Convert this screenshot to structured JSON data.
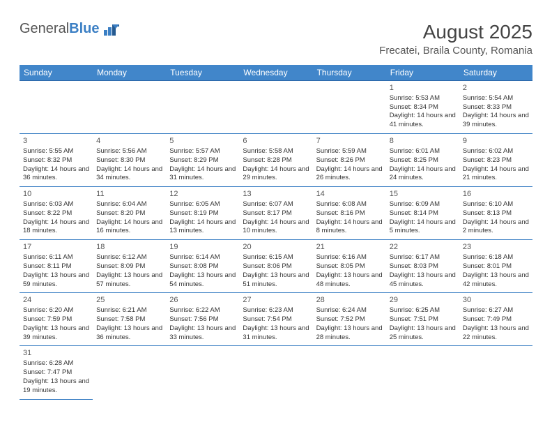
{
  "logo": {
    "textA": "General",
    "textB": "Blue"
  },
  "title": "August 2025",
  "location": "Frecatei, Braila County, Romania",
  "colors": {
    "headerBg": "#4186ca",
    "headerFg": "#ffffff",
    "border": "#3b7fc4",
    "logoBlue": "#3b7fc4",
    "text": "#333"
  },
  "dayNames": [
    "Sunday",
    "Monday",
    "Tuesday",
    "Wednesday",
    "Thursday",
    "Friday",
    "Saturday"
  ],
  "startOffset": 5,
  "days": [
    {
      "n": 1,
      "sr": "5:53 AM",
      "ss": "8:34 PM",
      "dl": "14 hours and 41 minutes."
    },
    {
      "n": 2,
      "sr": "5:54 AM",
      "ss": "8:33 PM",
      "dl": "14 hours and 39 minutes."
    },
    {
      "n": 3,
      "sr": "5:55 AM",
      "ss": "8:32 PM",
      "dl": "14 hours and 36 minutes."
    },
    {
      "n": 4,
      "sr": "5:56 AM",
      "ss": "8:30 PM",
      "dl": "14 hours and 34 minutes."
    },
    {
      "n": 5,
      "sr": "5:57 AM",
      "ss": "8:29 PM",
      "dl": "14 hours and 31 minutes."
    },
    {
      "n": 6,
      "sr": "5:58 AM",
      "ss": "8:28 PM",
      "dl": "14 hours and 29 minutes."
    },
    {
      "n": 7,
      "sr": "5:59 AM",
      "ss": "8:26 PM",
      "dl": "14 hours and 26 minutes."
    },
    {
      "n": 8,
      "sr": "6:01 AM",
      "ss": "8:25 PM",
      "dl": "14 hours and 24 minutes."
    },
    {
      "n": 9,
      "sr": "6:02 AM",
      "ss": "8:23 PM",
      "dl": "14 hours and 21 minutes."
    },
    {
      "n": 10,
      "sr": "6:03 AM",
      "ss": "8:22 PM",
      "dl": "14 hours and 18 minutes."
    },
    {
      "n": 11,
      "sr": "6:04 AM",
      "ss": "8:20 PM",
      "dl": "14 hours and 16 minutes."
    },
    {
      "n": 12,
      "sr": "6:05 AM",
      "ss": "8:19 PM",
      "dl": "14 hours and 13 minutes."
    },
    {
      "n": 13,
      "sr": "6:07 AM",
      "ss": "8:17 PM",
      "dl": "14 hours and 10 minutes."
    },
    {
      "n": 14,
      "sr": "6:08 AM",
      "ss": "8:16 PM",
      "dl": "14 hours and 8 minutes."
    },
    {
      "n": 15,
      "sr": "6:09 AM",
      "ss": "8:14 PM",
      "dl": "14 hours and 5 minutes."
    },
    {
      "n": 16,
      "sr": "6:10 AM",
      "ss": "8:13 PM",
      "dl": "14 hours and 2 minutes."
    },
    {
      "n": 17,
      "sr": "6:11 AM",
      "ss": "8:11 PM",
      "dl": "13 hours and 59 minutes."
    },
    {
      "n": 18,
      "sr": "6:12 AM",
      "ss": "8:09 PM",
      "dl": "13 hours and 57 minutes."
    },
    {
      "n": 19,
      "sr": "6:14 AM",
      "ss": "8:08 PM",
      "dl": "13 hours and 54 minutes."
    },
    {
      "n": 20,
      "sr": "6:15 AM",
      "ss": "8:06 PM",
      "dl": "13 hours and 51 minutes."
    },
    {
      "n": 21,
      "sr": "6:16 AM",
      "ss": "8:05 PM",
      "dl": "13 hours and 48 minutes."
    },
    {
      "n": 22,
      "sr": "6:17 AM",
      "ss": "8:03 PM",
      "dl": "13 hours and 45 minutes."
    },
    {
      "n": 23,
      "sr": "6:18 AM",
      "ss": "8:01 PM",
      "dl": "13 hours and 42 minutes."
    },
    {
      "n": 24,
      "sr": "6:20 AM",
      "ss": "7:59 PM",
      "dl": "13 hours and 39 minutes."
    },
    {
      "n": 25,
      "sr": "6:21 AM",
      "ss": "7:58 PM",
      "dl": "13 hours and 36 minutes."
    },
    {
      "n": 26,
      "sr": "6:22 AM",
      "ss": "7:56 PM",
      "dl": "13 hours and 33 minutes."
    },
    {
      "n": 27,
      "sr": "6:23 AM",
      "ss": "7:54 PM",
      "dl": "13 hours and 31 minutes."
    },
    {
      "n": 28,
      "sr": "6:24 AM",
      "ss": "7:52 PM",
      "dl": "13 hours and 28 minutes."
    },
    {
      "n": 29,
      "sr": "6:25 AM",
      "ss": "7:51 PM",
      "dl": "13 hours and 25 minutes."
    },
    {
      "n": 30,
      "sr": "6:27 AM",
      "ss": "7:49 PM",
      "dl": "13 hours and 22 minutes."
    },
    {
      "n": 31,
      "sr": "6:28 AM",
      "ss": "7:47 PM",
      "dl": "13 hours and 19 minutes."
    }
  ],
  "labels": {
    "sunrise": "Sunrise: ",
    "sunset": "Sunset: ",
    "daylight": "Daylight: "
  }
}
